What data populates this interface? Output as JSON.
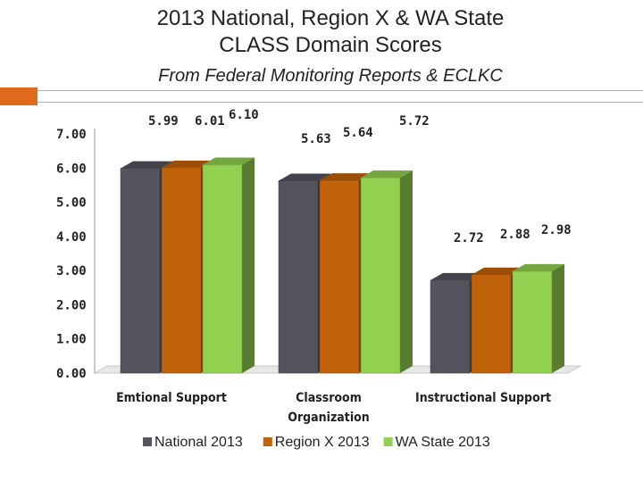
{
  "header": {
    "title_line1": "2013 National, Region X & WA State",
    "title_line2": "CLASS Domain Scores",
    "subtitle": "From Federal Monitoring Reports & ECLKC"
  },
  "colors": {
    "accent": "#e06a1b",
    "rule": "#a9b2bb"
  },
  "chart_data": {
    "type": "bar",
    "ylim": [
      0,
      7
    ],
    "y_ticks": [
      "0.00",
      "1.00",
      "2.00",
      "3.00",
      "4.00",
      "5.00",
      "6.00",
      "7.00"
    ],
    "categories": [
      "Emtional Support",
      "Classroom Organization",
      "Instructional Support"
    ],
    "category_labels": [
      [
        "Emtional Support"
      ],
      [
        "Classroom",
        "Organization"
      ],
      [
        "Instructional Support"
      ]
    ],
    "series": [
      {
        "name": "National 2013",
        "color": "#55535e",
        "values": [
          5.99,
          5.63,
          2.72
        ],
        "labels": [
          "5.99",
          "5.63",
          "2.72"
        ]
      },
      {
        "name": "Region X 2013",
        "color": "#c0620a",
        "values": [
          6.01,
          5.64,
          2.88
        ],
        "labels": [
          "6.01",
          "5.64",
          "2.88"
        ]
      },
      {
        "name": "WA State 2013",
        "color": "#92d050",
        "values": [
          6.1,
          5.72,
          2.98
        ],
        "labels": [
          "6.10",
          "5.72",
          "2.98"
        ]
      }
    ],
    "three_d": true,
    "legend_position": "bottom"
  }
}
